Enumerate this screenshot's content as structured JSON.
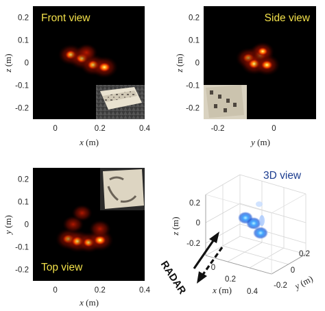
{
  "chart_data": [
    {
      "type": "heatmap",
      "view_label": "Front view",
      "xlabel": {
        "var": "x",
        "unit": "(m)"
      },
      "ylabel": {
        "var": "z",
        "unit": "(m)"
      },
      "xlim": [
        -0.1,
        0.4
      ],
      "ylim": [
        -0.25,
        0.25
      ],
      "xticks": [
        "0",
        "0.2",
        "0.4"
      ],
      "xtick_values": [
        0,
        0.2,
        0.4
      ],
      "yticks": [
        "0.2",
        "0.1",
        "0",
        "-0.1",
        "-0.2"
      ],
      "ytick_values": [
        0.2,
        0.1,
        0,
        -0.1,
        -0.2
      ],
      "hotspots": [
        {
          "x": 0.07,
          "y": 0.035,
          "intensity": 0.8
        },
        {
          "x": 0.12,
          "y": 0.02,
          "intensity": 0.95
        },
        {
          "x": 0.17,
          "y": -0.01,
          "intensity": 0.85
        },
        {
          "x": 0.22,
          "y": -0.02,
          "intensity": 0.9
        },
        {
          "x": 0.14,
          "y": 0.045,
          "intensity": 0.5
        }
      ],
      "inset_photo": "antenna-array-photo"
    },
    {
      "type": "heatmap",
      "view_label": "Side view",
      "xlabel": {
        "var": "y",
        "unit": "(m)"
      },
      "ylabel": {
        "var": "z",
        "unit": "(m)"
      },
      "xlim": [
        -0.25,
        0.15
      ],
      "ylim": [
        -0.25,
        0.25
      ],
      "xticks": [
        "-0.2",
        "0"
      ],
      "xtick_values": [
        -0.2,
        0
      ],
      "yticks": [
        "0.2",
        "0.1",
        "0",
        "-0.1",
        "-0.2"
      ],
      "ytick_values": [
        0.2,
        0.1,
        0,
        -0.1,
        -0.2
      ],
      "hotspots": [
        {
          "x": -0.05,
          "y": 0.03,
          "intensity": 0.95
        },
        {
          "x": -0.09,
          "y": 0.02,
          "intensity": 0.8
        },
        {
          "x": -0.07,
          "y": -0.005,
          "intensity": 0.9
        },
        {
          "x": -0.025,
          "y": -0.01,
          "intensity": 0.85
        },
        {
          "x": -0.04,
          "y": 0.05,
          "intensity": 0.6
        }
      ],
      "inset_photo": "antenna-array-side-photo"
    },
    {
      "type": "heatmap",
      "view_label": "Top view",
      "xlabel": {
        "var": "x",
        "unit": "(m)"
      },
      "ylabel": {
        "var": "y",
        "unit": "(m)"
      },
      "xlim": [
        -0.1,
        0.4
      ],
      "ylim": [
        -0.25,
        0.25
      ],
      "xticks": [
        "0",
        "0.2",
        "0.4"
      ],
      "xtick_values": [
        0,
        0.2,
        0.4
      ],
      "yticks": [
        "0.2",
        "0.1",
        "0",
        "-0.1",
        "-0.2"
      ],
      "ytick_values": [
        0.2,
        0.1,
        0,
        -0.1,
        -0.2
      ],
      "hotspots": [
        {
          "x": 0.06,
          "y": -0.065,
          "intensity": 0.85
        },
        {
          "x": 0.1,
          "y": -0.075,
          "intensity": 0.95
        },
        {
          "x": 0.15,
          "y": -0.08,
          "intensity": 0.8
        },
        {
          "x": 0.2,
          "y": -0.07,
          "intensity": 0.9
        },
        {
          "x": 0.08,
          "y": 0.0,
          "intensity": 0.45
        },
        {
          "x": 0.12,
          "y": 0.05,
          "intensity": 0.4
        },
        {
          "x": 0.2,
          "y": -0.02,
          "intensity": 0.5
        }
      ],
      "inset_photo": "antenna-array-top-photo"
    },
    {
      "type": "scatter",
      "view_label": "3D view",
      "xlabel": {
        "var": "x",
        "unit": "(m)"
      },
      "ylabel": {
        "var": "y",
        "unit": "(m)"
      },
      "zlabel": {
        "var": "z",
        "unit": "(m)"
      },
      "xticks": [
        "0",
        "0.2",
        "0.4"
      ],
      "yticks": [
        "-0.2",
        "0",
        "0.2"
      ],
      "zticks": [
        "0.2",
        "0",
        "-0.2"
      ],
      "annotation": "RADAR",
      "blobs": [
        {
          "x": 0.1,
          "y": -0.05,
          "z": 0.05
        },
        {
          "x": 0.15,
          "y": -0.02,
          "z": 0.0
        },
        {
          "x": 0.2,
          "y": 0.02,
          "z": -0.05
        }
      ]
    }
  ],
  "colors": {
    "heatmap_bg": "#000000",
    "heat_low": "#7a0d00",
    "heat_mid": "#ff4a00",
    "heat_high": "#ffe27a",
    "view_label": "#f2e04a",
    "view_label_3d": "#1b3c8f",
    "blob_blue": "#1e5bd8",
    "blob_core": "#7fe3ff"
  }
}
